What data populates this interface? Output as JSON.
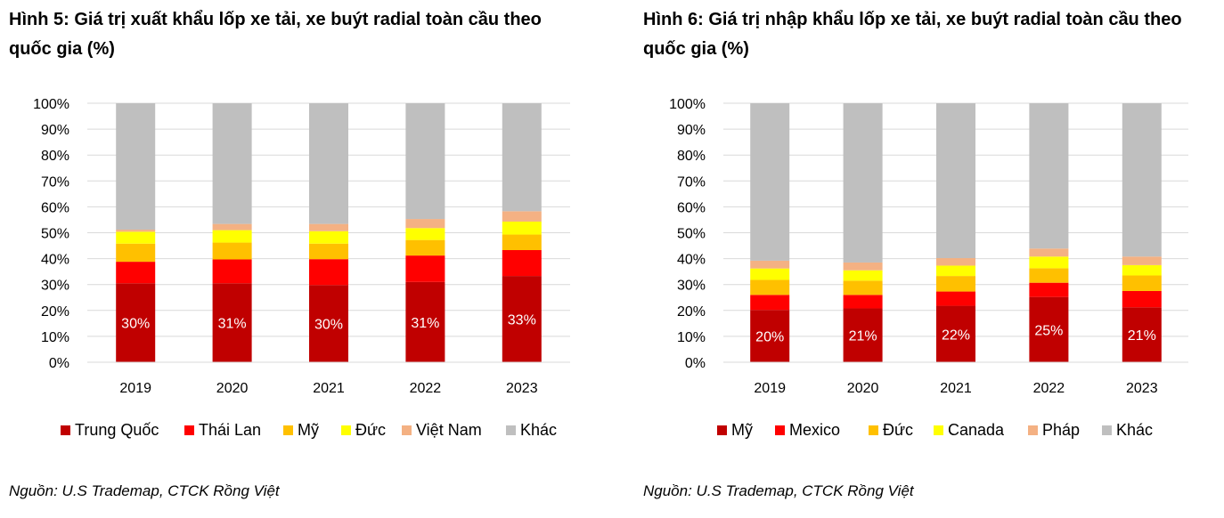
{
  "chart_data": [
    {
      "type": "bar",
      "stacked": true,
      "title": "Hình 5: Giá trị xuất khẩu lốp xe tải, xe buýt radial toàn cầu theo quốc gia (%)",
      "source": "Nguồn: U.S Trademap, CTCK Rồng Việt",
      "categories": [
        "2019",
        "2020",
        "2021",
        "2022",
        "2023"
      ],
      "ylim": [
        0,
        100
      ],
      "yticks": [
        "0%",
        "10%",
        "20%",
        "30%",
        "40%",
        "50%",
        "60%",
        "70%",
        "80%",
        "90%",
        "100%"
      ],
      "grid": true,
      "legend_position": "bottom",
      "series": [
        {
          "name": "Trung Quốc",
          "color": "#c00000",
          "values": [
            30.5,
            30.5,
            29.8,
            31,
            33.3
          ]
        },
        {
          "name": "Thái Lan",
          "color": "#ff0000",
          "values": [
            8.3,
            9.2,
            10,
            10.2,
            10
          ]
        },
        {
          "name": "Mỹ",
          "color": "#ffc000",
          "values": [
            7,
            6.5,
            6,
            6,
            6
          ]
        },
        {
          "name": "Đức",
          "color": "#ffff00",
          "values": [
            4.6,
            4.8,
            4.8,
            4.6,
            5
          ]
        },
        {
          "name": "Việt Nam",
          "color": "#f4b183",
          "values": [
            0.8,
            2.4,
            2.8,
            3.5,
            4
          ]
        },
        {
          "name": "Khác",
          "color": "#bfbfbf",
          "values": [
            48.8,
            46.6,
            46.6,
            44.7,
            41.7
          ]
        }
      ],
      "data_labels": [
        "30%",
        "31%",
        "30%",
        "31%",
        "33%"
      ]
    },
    {
      "type": "bar",
      "stacked": true,
      "title": "Hình 6: Giá trị nhập khẩu lốp xe tải, xe buýt radial toàn cầu theo quốc gia (%)",
      "source": "Nguồn: U.S Trademap, CTCK Rồng Việt",
      "categories": [
        "2019",
        "2020",
        "2021",
        "2022",
        "2023"
      ],
      "ylim": [
        0,
        100
      ],
      "yticks": [
        "0%",
        "10%",
        "20%",
        "30%",
        "40%",
        "50%",
        "60%",
        "70%",
        "80%",
        "90%",
        "100%"
      ],
      "grid": true,
      "legend_position": "bottom",
      "series": [
        {
          "name": "Mỹ",
          "color": "#c00000",
          "values": [
            20.2,
            20.8,
            21.8,
            25.2,
            21.2
          ]
        },
        {
          "name": "Mexico",
          "color": "#ff0000",
          "values": [
            5.8,
            5.2,
            5.5,
            5.5,
            6.3
          ]
        },
        {
          "name": "Đức",
          "color": "#ffc000",
          "values": [
            5.8,
            5.5,
            6,
            5.6,
            6
          ]
        },
        {
          "name": "Canada",
          "color": "#ffff00",
          "values": [
            4.4,
            4,
            4,
            4.5,
            4
          ]
        },
        {
          "name": "Pháp",
          "color": "#f4b183",
          "values": [
            3,
            3,
            2.9,
            3.1,
            3.3
          ]
        },
        {
          "name": "Khác",
          "color": "#bfbfbf",
          "values": [
            60.8,
            61.5,
            59.8,
            56.1,
            59.2
          ]
        }
      ],
      "data_labels": [
        "20%",
        "21%",
        "22%",
        "25%",
        "21%"
      ]
    }
  ]
}
